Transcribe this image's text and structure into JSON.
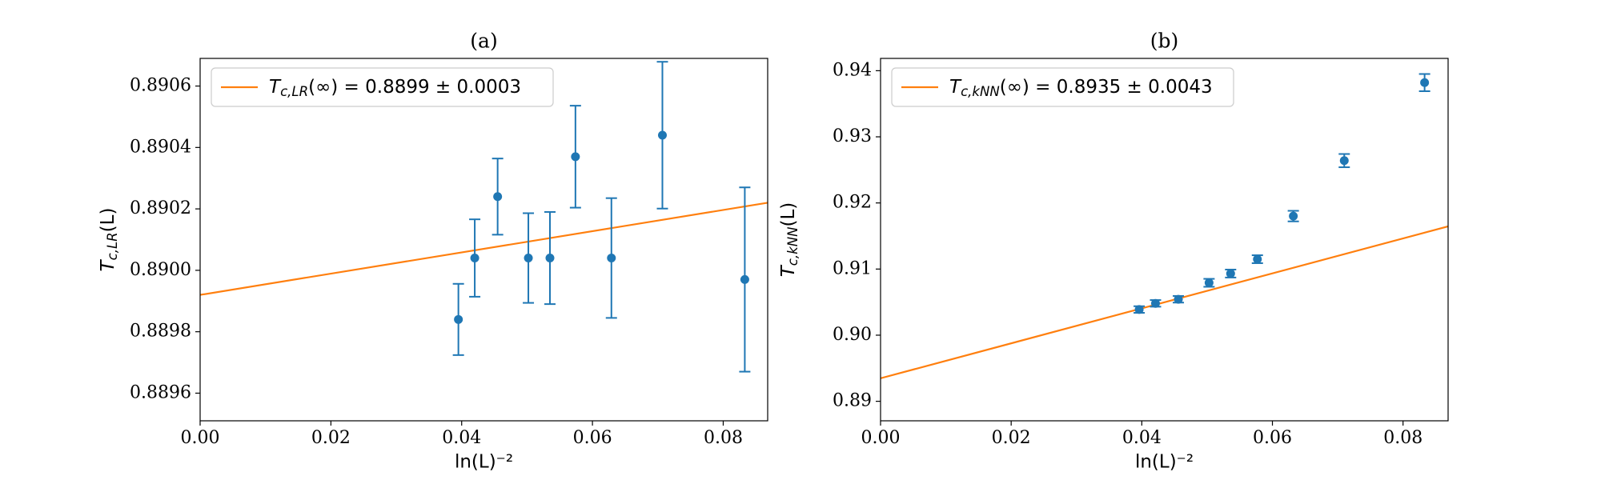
{
  "chart_data": [
    {
      "type": "scatter",
      "title": "(a)",
      "xlabel": "ln(L)⁻²",
      "ylabel": "Tc,LR(L)",
      "xlim": [
        0,
        0.0868
      ],
      "ylim": [
        0.88951,
        0.89069
      ],
      "xticks": [
        {
          "value": 0,
          "label": "0.00"
        },
        0.02,
        0.04,
        0.06,
        0.08
      ],
      "yticks": [
        0.8896,
        0.8898,
        {
          "value": 0.89,
          "label": "0.8900"
        },
        0.8902,
        0.8904,
        0.8906
      ],
      "legend": "upper left",
      "grid": false,
      "series": [
        {
          "name": "Tc,LR(∞) = 0.8899 ± 0.0003",
          "color": "#ff7f0e",
          "x": [
            0,
            0.0868
          ],
          "values": [
            0.88992,
            0.89022
          ]
        },
        {
          "color": "#1f77b4",
          "x": [
            0.0395,
            0.042,
            0.0455,
            0.0502,
            0.0535,
            0.0574,
            0.0629,
            0.0707,
            0.0833
          ],
          "values": [
            0.88984,
            0.89004,
            0.89024,
            0.89004,
            0.89004,
            0.89037,
            0.89004,
            0.89044,
            0.88997
          ],
          "errors": [
            0.000116,
            0.000126,
            0.000124,
            0.000146,
            0.00015,
            0.000166,
            0.000195,
            0.000239,
            0.0003
          ]
        }
      ]
    },
    {
      "type": "scatter",
      "title": "(b)",
      "xlabel": "ln(L)⁻²",
      "ylabel": "Tc,kNN(L)",
      "xlim": [
        0,
        0.0869
      ],
      "ylim": [
        0.88705,
        0.94186
      ],
      "xticks": [
        {
          "value": 0,
          "label": "0.00"
        },
        0.02,
        0.04,
        0.06,
        0.08
      ],
      "yticks": [
        0.89,
        {
          "value": 0.9,
          "label": "0.90"
        },
        0.91,
        0.92,
        0.93,
        0.94
      ],
      "legend": "upper left",
      "grid": false,
      "series": [
        {
          "name": "Tc,kNN(∞) = 0.8935 ± 0.0043",
          "color": "#ff7f0e",
          "x": [
            0,
            0.0869
          ],
          "values": [
            0.89348,
            0.91646
          ]
        },
        {
          "color": "#1f77b4",
          "x": [
            0.0396,
            0.0421,
            0.0456,
            0.0503,
            0.0536,
            0.0577,
            0.0632,
            0.071,
            0.0833
          ],
          "values": [
            0.90388,
            0.90481,
            0.90543,
            0.90792,
            0.90932,
            0.91149,
            0.91801,
            0.9264,
            0.9382
          ],
          "errors": [
            0.0005,
            0.0005,
            0.0005,
            0.0006,
            0.0006,
            0.0006,
            0.0008,
            0.001,
            0.0013
          ]
        }
      ]
    }
  ]
}
